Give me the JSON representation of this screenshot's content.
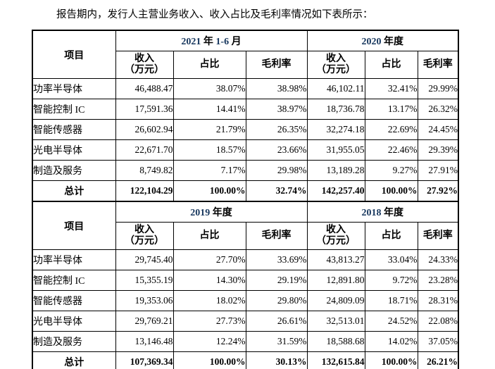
{
  "colors": {
    "accent": "#17375E",
    "text": "#000000",
    "background": "#ffffff",
    "border": "#000000"
  },
  "title": "报告期内，发行人主营业务收入、收入占比及毛利率情况如下表所示：",
  "table": {
    "headers": {
      "item": "项目",
      "revenue": "收入",
      "revenue_unit": "（万元）",
      "share": "占比",
      "margin": "毛利率"
    },
    "sections": [
      {
        "periods": [
          {
            "label": "2021 年 1-6 月",
            "parts": [
              {
                "t": "2021",
                "c": "accent"
              },
              {
                "t": " 年 "
              },
              {
                "t": "1-6",
                "c": "accent"
              },
              {
                "t": " 月"
              }
            ]
          },
          {
            "label": "2020 年度",
            "parts": [
              {
                "t": "2020",
                "c": "accent"
              },
              {
                "t": " 年度"
              }
            ]
          }
        ],
        "rows": [
          {
            "label": "功率半导体",
            "cells": [
              "46,488.47",
              "38.07%",
              "38.98%",
              "46,102.11",
              "32.41%",
              "29.99%"
            ]
          },
          {
            "label": "智能控制 IC",
            "cells": [
              "17,591.36",
              "14.41%",
              "38.97%",
              "18,736.78",
              "13.17%",
              "26.32%"
            ]
          },
          {
            "label": "智能传感器",
            "cells": [
              "26,602.94",
              "21.79%",
              "26.35%",
              "32,274.18",
              "22.69%",
              "24.45%"
            ]
          },
          {
            "label": "光电半导体",
            "cells": [
              "22,671.70",
              "18.57%",
              "23.66%",
              "31,955.05",
              "22.46%",
              "29.39%"
            ]
          },
          {
            "label": "制造及服务",
            "cells": [
              "8,749.82",
              "7.17%",
              "29.98%",
              "13,189.28",
              "9.27%",
              "27.91%"
            ]
          }
        ],
        "total": {
          "label": "总计",
          "cells": [
            "122,104.29",
            "100.00%",
            "32.74%",
            "142,257.40",
            "100.00%",
            "27.92%"
          ]
        }
      },
      {
        "periods": [
          {
            "label": "2019 年度",
            "parts": [
              {
                "t": "2019",
                "c": "accent"
              },
              {
                "t": " 年度"
              }
            ]
          },
          {
            "label": "2018 年度",
            "parts": [
              {
                "t": "2018",
                "c": "accent"
              },
              {
                "t": " 年度"
              }
            ]
          }
        ],
        "rows": [
          {
            "label": "功率半导体",
            "cells": [
              "29,745.40",
              "27.70%",
              "33.69%",
              "43,813.27",
              "33.04%",
              "24.33%"
            ]
          },
          {
            "label": "智能控制 IC",
            "cells": [
              "15,355.19",
              "14.30%",
              "29.19%",
              "12,891.80",
              "9.72%",
              "23.28%"
            ]
          },
          {
            "label": "智能传感器",
            "cells": [
              "19,353.06",
              "18.02%",
              "29.80%",
              "24,809.09",
              "18.71%",
              "28.31%"
            ]
          },
          {
            "label": "光电半导体",
            "cells": [
              "29,769.21",
              "27.73%",
              "26.61%",
              "32,513.01",
              "24.52%",
              "22.08%"
            ]
          },
          {
            "label": "制造及服务",
            "cells": [
              "13,146.48",
              "12.24%",
              "31.59%",
              "18,588.68",
              "14.02%",
              "37.05%"
            ]
          }
        ],
        "total": {
          "label": "总计",
          "cells": [
            "107,369.34",
            "100.00%",
            "30.13%",
            "132,615.84",
            "100.00%",
            "26.21%"
          ]
        }
      }
    ]
  }
}
